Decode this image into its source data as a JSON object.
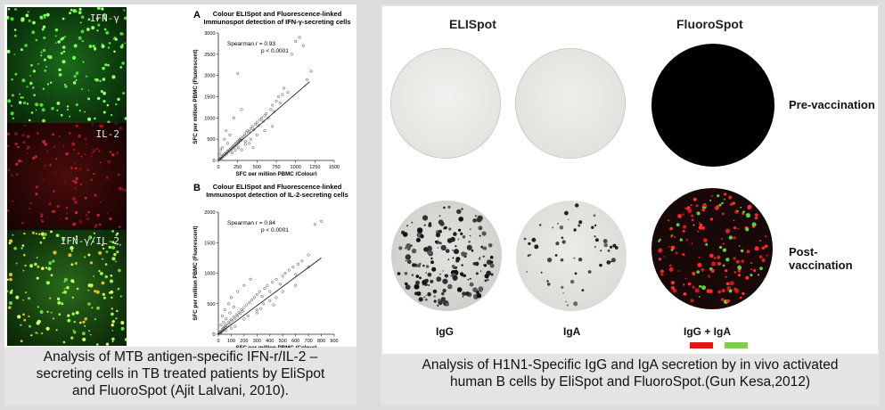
{
  "left": {
    "micrographs": {
      "ifn_label": "IFN-γ",
      "il2_label": "IL-2",
      "merge_label": "IFN-γ/IL-2"
    },
    "caption": {
      "line1": "Analysis of MTB antigen-specific IFN-r/IL-2 –",
      "line2": "secreting cells in TB treated patients by EliSpot",
      "line3": "and FluoroSpot (Ajit Lalvani, 2010)."
    }
  },
  "chart_data": [
    {
      "type": "scatter",
      "panel_label": "A",
      "title": "Colour ELISpot and Fluorescence-linked",
      "subtitle": "Immunospot detection of IFN-γ-secreting cells",
      "xlabel": "SFC per million PBMC (Colour)",
      "ylabel": "SFC per million PBMC (Fluorescent)",
      "xlim": [
        0,
        1500
      ],
      "ylim": [
        0,
        3000
      ],
      "xticks": [
        "0",
        "250",
        "500",
        "750",
        "1000",
        "1250",
        "1500"
      ],
      "yticks": [
        "0",
        "500",
        "1000",
        "1500",
        "2000",
        "2500",
        "3000"
      ],
      "annotation_line1": "Spearman r = 0.93",
      "annotation_line2": "p < 0.0001",
      "fit_line": [
        [
          0,
          0
        ],
        [
          1180,
          1850
        ]
      ],
      "points": [
        [
          10,
          20
        ],
        [
          20,
          40
        ],
        [
          30,
          60
        ],
        [
          40,
          50
        ],
        [
          50,
          90
        ],
        [
          60,
          120
        ],
        [
          70,
          100
        ],
        [
          80,
          150
        ],
        [
          90,
          130
        ],
        [
          100,
          180
        ],
        [
          110,
          160
        ],
        [
          120,
          220
        ],
        [
          130,
          200
        ],
        [
          140,
          250
        ],
        [
          150,
          230
        ],
        [
          160,
          280
        ],
        [
          170,
          260
        ],
        [
          180,
          320
        ],
        [
          190,
          300
        ],
        [
          200,
          350
        ],
        [
          210,
          330
        ],
        [
          220,
          380
        ],
        [
          230,
          410
        ],
        [
          240,
          360
        ],
        [
          250,
          450
        ],
        [
          260,
          420
        ],
        [
          270,
          480
        ],
        [
          280,
          500
        ],
        [
          290,
          470
        ],
        [
          300,
          520
        ],
        [
          320,
          560
        ],
        [
          340,
          600
        ],
        [
          350,
          380
        ],
        [
          360,
          650
        ],
        [
          380,
          700
        ],
        [
          400,
          680
        ],
        [
          420,
          750
        ],
        [
          440,
          800
        ],
        [
          460,
          720
        ],
        [
          480,
          850
        ],
        [
          500,
          900
        ],
        [
          520,
          820
        ],
        [
          540,
          950
        ],
        [
          560,
          1000
        ],
        [
          580,
          920
        ],
        [
          600,
          1050
        ],
        [
          620,
          1100
        ],
        [
          650,
          1000
        ],
        [
          680,
          1200
        ],
        [
          700,
          1300
        ],
        [
          720,
          1150
        ],
        [
          750,
          1400
        ],
        [
          780,
          1500
        ],
        [
          800,
          1350
        ],
        [
          830,
          1550
        ],
        [
          850,
          1700
        ],
        [
          900,
          1600
        ],
        [
          950,
          2500
        ],
        [
          1000,
          2800
        ],
        [
          1050,
          2900
        ],
        [
          1100,
          2700
        ],
        [
          1150,
          1900
        ],
        [
          1200,
          2100
        ],
        [
          250,
          2050
        ],
        [
          150,
          600
        ],
        [
          100,
          700
        ],
        [
          50,
          300
        ],
        [
          30,
          250
        ],
        [
          20,
          150
        ],
        [
          200,
          1000
        ],
        [
          300,
          1200
        ],
        [
          400,
          400
        ],
        [
          450,
          300
        ],
        [
          500,
          600
        ],
        [
          600,
          700
        ],
        [
          700,
          800
        ],
        [
          80,
          500
        ],
        [
          120,
          400
        ],
        [
          180,
          180
        ],
        [
          220,
          250
        ],
        [
          260,
          300
        ],
        [
          300,
          250
        ],
        [
          350,
          450
        ],
        [
          420,
          500
        ]
      ]
    },
    {
      "type": "scatter",
      "panel_label": "B",
      "title": "Colour ELISpot and Fluorescence-linked",
      "subtitle": "Immunospot detection of IL-2-secreting cells",
      "xlabel": "SFC per million PBMC (Colour)",
      "ylabel": "SFC per million PBMC (Fluorescent)",
      "xlim": [
        0,
        900
      ],
      "ylim": [
        0,
        2000
      ],
      "xticks": [
        "0",
        "100",
        "200",
        "300",
        "400",
        "500",
        "600",
        "700",
        "800",
        "900"
      ],
      "yticks": [
        "0",
        "500",
        "1000",
        "1500",
        "2000"
      ],
      "annotation_line1": "Spearman r = 0.84",
      "annotation_line2": "p < 0.0001",
      "fit_line": [
        [
          0,
          0
        ],
        [
          800,
          1250
        ]
      ],
      "points": [
        [
          5,
          10
        ],
        [
          10,
          30
        ],
        [
          15,
          20
        ],
        [
          20,
          50
        ],
        [
          25,
          40
        ],
        [
          30,
          80
        ],
        [
          35,
          60
        ],
        [
          40,
          100
        ],
        [
          45,
          90
        ],
        [
          50,
          130
        ],
        [
          55,
          110
        ],
        [
          60,
          160
        ],
        [
          70,
          140
        ],
        [
          80,
          200
        ],
        [
          90,
          180
        ],
        [
          100,
          240
        ],
        [
          110,
          220
        ],
        [
          120,
          280
        ],
        [
          130,
          260
        ],
        [
          140,
          320
        ],
        [
          150,
          300
        ],
        [
          160,
          360
        ],
        [
          170,
          340
        ],
        [
          180,
          400
        ],
        [
          190,
          380
        ],
        [
          200,
          440
        ],
        [
          220,
          480
        ],
        [
          240,
          520
        ],
        [
          260,
          560
        ],
        [
          280,
          600
        ],
        [
          300,
          650
        ],
        [
          320,
          700
        ],
        [
          340,
          620
        ],
        [
          360,
          750
        ],
        [
          380,
          800
        ],
        [
          400,
          700
        ],
        [
          420,
          850
        ],
        [
          450,
          900
        ],
        [
          480,
          820
        ],
        [
          500,
          950
        ],
        [
          520,
          1000
        ],
        [
          550,
          1050
        ],
        [
          580,
          1100
        ],
        [
          600,
          980
        ],
        [
          620,
          1150
        ],
        [
          650,
          1200
        ],
        [
          700,
          1300
        ],
        [
          750,
          1800
        ],
        [
          800,
          1850
        ],
        [
          30,
          300
        ],
        [
          50,
          400
        ],
        [
          80,
          500
        ],
        [
          100,
          600
        ],
        [
          150,
          700
        ],
        [
          200,
          800
        ],
        [
          250,
          900
        ],
        [
          40,
          200
        ],
        [
          60,
          250
        ],
        [
          90,
          350
        ],
        [
          120,
          450
        ],
        [
          300,
          400
        ],
        [
          350,
          500
        ],
        [
          400,
          550
        ],
        [
          450,
          600
        ],
        [
          100,
          100
        ],
        [
          200,
          250
        ],
        [
          300,
          350
        ],
        [
          500,
          700
        ],
        [
          600,
          800
        ],
        [
          700,
          1100
        ],
        [
          20,
          150
        ],
        [
          60,
          60
        ],
        [
          130,
          130
        ],
        [
          230,
          300
        ],
        [
          330,
          420
        ],
        [
          430,
          480
        ]
      ]
    }
  ],
  "right": {
    "headings": {
      "elispot": "ELISpot",
      "fluorospot": "FluoroSpot"
    },
    "rows": {
      "pre": "Pre-vaccination",
      "post": "Post-vaccination"
    },
    "antibodies": {
      "igg": "IgG",
      "iga": "IgA",
      "combined": "IgG + IgA"
    },
    "legend_colors": {
      "igg": "#e01818",
      "iga": "#7ed04a"
    },
    "caption": {
      "line1": "Analysis of H1N1-Specific IgG and IgA secretion by in vivo activated",
      "line2": "human B cells by EliSpot and FluoroSpot.(Gun Kesa,2012)"
    }
  }
}
